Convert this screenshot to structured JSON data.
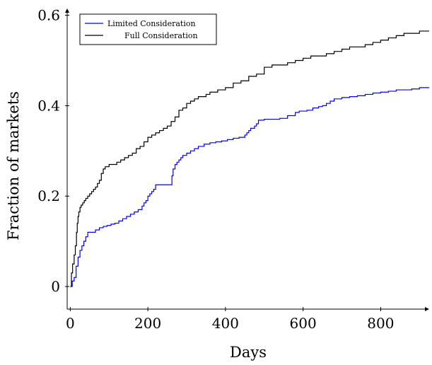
{
  "chart_data": {
    "type": "line",
    "title": "",
    "xlabel": "Days",
    "ylabel": "Fraction of markets",
    "xlim": [
      -8,
      925
    ],
    "ylim": [
      -0.05,
      0.615
    ],
    "xticks": [
      0,
      200,
      400,
      600,
      800
    ],
    "yticks": [
      0,
      0.2,
      0.4,
      0.6
    ],
    "xtick_labels": [
      "0",
      "200",
      "400",
      "600",
      "800"
    ],
    "ytick_labels": [
      "0",
      "0.2",
      "0.4",
      "0.6"
    ],
    "grid": false,
    "legend_position": "top-left",
    "series": [
      {
        "name": "Limited Consideration",
        "color": "#0000ff",
        "step": true,
        "x": [
          0,
          5,
          10,
          15,
          20,
          25,
          30,
          35,
          40,
          45,
          55,
          65,
          75,
          85,
          95,
          105,
          115,
          125,
          135,
          145,
          155,
          165,
          175,
          185,
          190,
          195,
          200,
          205,
          210,
          215,
          220,
          225,
          240,
          255,
          262,
          265,
          270,
          275,
          280,
          285,
          290,
          300,
          310,
          320,
          330,
          345,
          360,
          375,
          390,
          405,
          420,
          435,
          450,
          455,
          460,
          465,
          475,
          480,
          485,
          500,
          520,
          540,
          560,
          580,
          590,
          610,
          625,
          640,
          650,
          660,
          670,
          680,
          700,
          720,
          740,
          760,
          780,
          800,
          820,
          840,
          860,
          880,
          900,
          925
        ],
        "y": [
          0,
          0.012,
          0.02,
          0.045,
          0.065,
          0.08,
          0.09,
          0.1,
          0.11,
          0.12,
          0.12,
          0.125,
          0.13,
          0.133,
          0.135,
          0.138,
          0.14,
          0.145,
          0.15,
          0.155,
          0.16,
          0.165,
          0.17,
          0.178,
          0.185,
          0.19,
          0.2,
          0.205,
          0.21,
          0.215,
          0.225,
          0.225,
          0.225,
          0.225,
          0.245,
          0.26,
          0.27,
          0.275,
          0.28,
          0.285,
          0.29,
          0.295,
          0.3,
          0.305,
          0.31,
          0.315,
          0.318,
          0.32,
          0.322,
          0.325,
          0.328,
          0.33,
          0.335,
          0.34,
          0.345,
          0.35,
          0.355,
          0.36,
          0.368,
          0.37,
          0.37,
          0.372,
          0.378,
          0.385,
          0.388,
          0.39,
          0.395,
          0.398,
          0.4,
          0.405,
          0.41,
          0.415,
          0.418,
          0.42,
          0.422,
          0.425,
          0.428,
          0.43,
          0.432,
          0.435,
          0.435,
          0.437,
          0.44,
          0.44
        ]
      },
      {
        "name": "Full Consideration",
        "color": "#000000",
        "step": true,
        "x": [
          0,
          3,
          6,
          10,
          13,
          16,
          18,
          20,
          22,
          25,
          28,
          32,
          36,
          40,
          45,
          50,
          55,
          60,
          65,
          70,
          75,
          80,
          85,
          90,
          100,
          110,
          120,
          130,
          140,
          150,
          160,
          170,
          180,
          190,
          200,
          210,
          220,
          230,
          240,
          250,
          260,
          270,
          280,
          290,
          300,
          310,
          320,
          330,
          340,
          350,
          360,
          370,
          380,
          390,
          400,
          420,
          440,
          460,
          480,
          500,
          520,
          540,
          560,
          580,
          600,
          620,
          640,
          660,
          680,
          700,
          720,
          740,
          760,
          780,
          800,
          820,
          840,
          860,
          880,
          900,
          925
        ],
        "y": [
          0,
          0.03,
          0.05,
          0.07,
          0.09,
          0.12,
          0.14,
          0.155,
          0.165,
          0.175,
          0.18,
          0.185,
          0.19,
          0.195,
          0.2,
          0.205,
          0.21,
          0.215,
          0.22,
          0.228,
          0.235,
          0.25,
          0.26,
          0.265,
          0.27,
          0.27,
          0.275,
          0.28,
          0.285,
          0.29,
          0.295,
          0.305,
          0.31,
          0.32,
          0.33,
          0.335,
          0.34,
          0.345,
          0.35,
          0.355,
          0.365,
          0.375,
          0.39,
          0.395,
          0.405,
          0.41,
          0.415,
          0.42,
          0.42,
          0.425,
          0.43,
          0.43,
          0.435,
          0.435,
          0.44,
          0.45,
          0.455,
          0.465,
          0.47,
          0.485,
          0.49,
          0.49,
          0.495,
          0.5,
          0.505,
          0.51,
          0.51,
          0.515,
          0.52,
          0.525,
          0.53,
          0.53,
          0.535,
          0.54,
          0.545,
          0.55,
          0.555,
          0.56,
          0.56,
          0.565,
          0.565
        ]
      }
    ]
  }
}
